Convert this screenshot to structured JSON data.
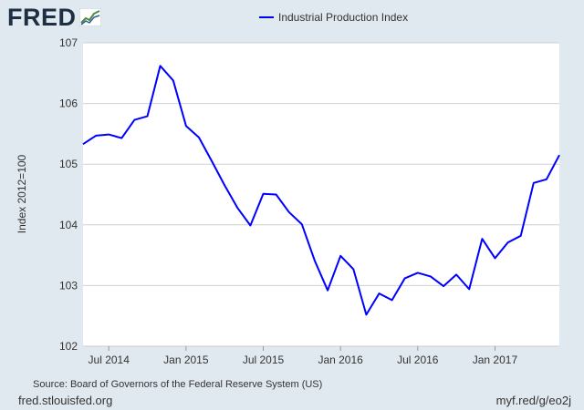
{
  "branding": {
    "logo_text": "FRED",
    "logo_icon": "line-chart-icon",
    "site": "fred.stlouisfed.org",
    "short_url": "myf.red/g/eo2j"
  },
  "source": "Source: Board of Governors of the Federal Reserve System (US)",
  "colors": {
    "series": "#0000ff",
    "background": "#e1e9f0",
    "plot": "#ffffff",
    "grid": "#d0d0d0",
    "text": "#333333"
  },
  "chart_data": {
    "type": "line",
    "title": "",
    "xlabel": "",
    "ylabel": "Index 2012=100",
    "ylim": [
      102,
      107
    ],
    "yticks": [
      102,
      103,
      104,
      105,
      106,
      107
    ],
    "xticks": [
      {
        "label": "Jul 2014",
        "date": "2014-07"
      },
      {
        "label": "Jan 2015",
        "date": "2015-01"
      },
      {
        "label": "Jul 2015",
        "date": "2015-07"
      },
      {
        "label": "Jan 2016",
        "date": "2016-01"
      },
      {
        "label": "Jul 2016",
        "date": "2016-07"
      },
      {
        "label": "Jan 2017",
        "date": "2017-01"
      }
    ],
    "x_range": [
      "2014-05",
      "2017-06"
    ],
    "grid": "horizontal",
    "legend_position": "top-center",
    "series": [
      {
        "name": "Industrial Production Index",
        "color": "#0000ff",
        "x": [
          "2014-05",
          "2014-06",
          "2014-07",
          "2014-08",
          "2014-09",
          "2014-10",
          "2014-11",
          "2014-12",
          "2015-01",
          "2015-02",
          "2015-03",
          "2015-04",
          "2015-05",
          "2015-06",
          "2015-07",
          "2015-08",
          "2015-09",
          "2015-10",
          "2015-11",
          "2015-12",
          "2016-01",
          "2016-02",
          "2016-03",
          "2016-04",
          "2016-05",
          "2016-06",
          "2016-07",
          "2016-08",
          "2016-09",
          "2016-10",
          "2016-11",
          "2016-12",
          "2017-01",
          "2017-02",
          "2017-03",
          "2017-04",
          "2017-05",
          "2017-06"
        ],
        "values": [
          105.33,
          105.47,
          105.49,
          105.43,
          105.73,
          105.79,
          106.62,
          106.38,
          105.63,
          105.44,
          105.05,
          104.65,
          104.28,
          103.99,
          104.51,
          104.5,
          104.21,
          104.01,
          103.41,
          102.92,
          103.49,
          103.27,
          102.52,
          102.87,
          102.76,
          103.12,
          103.21,
          103.15,
          102.99,
          103.18,
          102.94,
          103.77,
          103.45,
          103.71,
          103.82,
          104.69,
          104.75,
          105.15
        ]
      }
    ]
  }
}
